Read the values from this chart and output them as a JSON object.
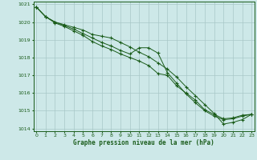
{
  "title": "Graphe pression niveau de la mer (hPa)",
  "x_hours": [
    0,
    1,
    2,
    3,
    4,
    5,
    6,
    7,
    8,
    9,
    10,
    11,
    12,
    13,
    14,
    15,
    16,
    17,
    18,
    19,
    20,
    21,
    22,
    23
  ],
  "line1": [
    1020.85,
    1020.3,
    1020.0,
    1019.85,
    1019.7,
    1019.55,
    1019.3,
    1019.2,
    1019.1,
    1018.85,
    1018.6,
    1018.3,
    1018.05,
    1017.7,
    1017.35,
    1016.9,
    1016.35,
    1015.85,
    1015.35,
    1014.85,
    1014.25,
    1014.35,
    1014.5,
    1014.8
  ],
  "line2": [
    1020.85,
    1020.3,
    1020.0,
    1019.8,
    1019.6,
    1019.35,
    1019.1,
    1018.85,
    1018.65,
    1018.4,
    1018.2,
    1018.55,
    1018.55,
    1018.25,
    1017.15,
    1016.55,
    1015.95,
    1015.45,
    1015.0,
    1014.7,
    1014.5,
    1014.55,
    1014.7,
    1014.8
  ],
  "line3": [
    1020.85,
    1020.3,
    1019.95,
    1019.75,
    1019.5,
    1019.25,
    1018.9,
    1018.65,
    1018.45,
    1018.2,
    1018.0,
    1017.8,
    1017.55,
    1017.1,
    1017.0,
    1016.4,
    1016.0,
    1015.6,
    1015.05,
    1014.8,
    1014.55,
    1014.6,
    1014.75,
    1014.8
  ],
  "line_color": "#1a5c1a",
  "bg_color": "#cde8e8",
  "grid_color": "#a8c8c8",
  "axis_color": "#1a5c1a",
  "ylabel_min": 1014,
  "ylabel_max": 1021,
  "ylabel_step": 1,
  "marker": "+",
  "markersize": 3.5,
  "linewidth": 0.7
}
